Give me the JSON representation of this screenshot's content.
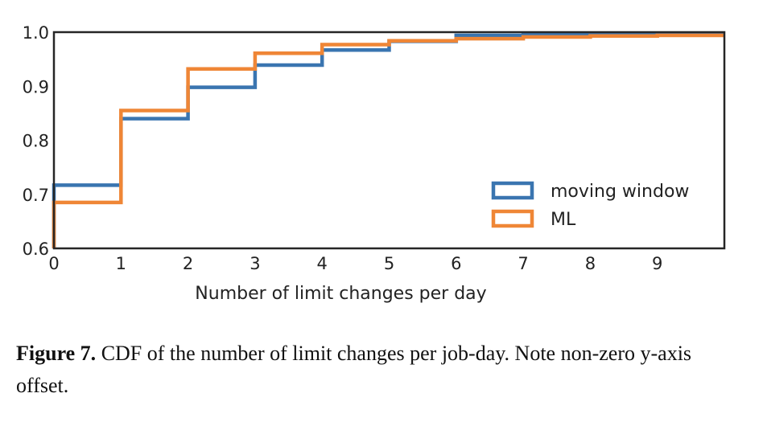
{
  "chart_data": {
    "type": "line",
    "step": true,
    "xlabel": "Number of limit changes per day",
    "ylabel": "",
    "xlim": [
      0,
      10
    ],
    "ylim": [
      0.6,
      1.0
    ],
    "xticks": [
      "0",
      "1",
      "2",
      "3",
      "4",
      "5",
      "6",
      "7",
      "8",
      "9"
    ],
    "yticks": [
      "0.6",
      "0.7",
      "0.8",
      "0.9",
      "1.0"
    ],
    "grid": false,
    "legend_position": "center-right",
    "x": [
      0,
      1,
      2,
      3,
      4,
      5,
      6,
      7,
      8,
      9,
      10
    ],
    "series": [
      {
        "name": "moving window",
        "color": "#3a75b0",
        "values": [
          0.717,
          0.84,
          0.898,
          0.939,
          0.967,
          0.983,
          0.994,
          0.997,
          0.997,
          0.997,
          0.997
        ]
      },
      {
        "name": "ML",
        "color": "#ef8636",
        "values": [
          0.685,
          0.855,
          0.932,
          0.961,
          0.977,
          0.984,
          0.988,
          0.991,
          0.993,
          0.994,
          0.994
        ]
      }
    ]
  },
  "caption": {
    "label": "Figure 7.",
    "text": " CDF of the number of limit changes per job-day. Note non-zero y-axis offset."
  }
}
